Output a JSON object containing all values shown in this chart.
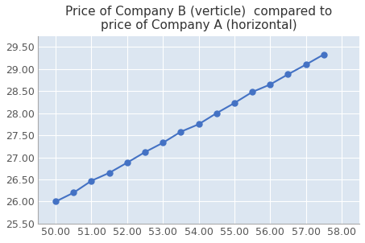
{
  "title": "Price of Company B (verticle)  compared to\nprice of Company A (horizontal)",
  "x": [
    50.0,
    50.5,
    51.0,
    51.5,
    52.0,
    52.5,
    53.0,
    53.5,
    54.0,
    54.5,
    55.0,
    55.5,
    56.0,
    56.5,
    57.0,
    57.5
  ],
  "y": [
    26.0,
    26.2,
    26.47,
    26.65,
    26.88,
    27.12,
    27.33,
    27.58,
    27.75,
    28.0,
    28.23,
    28.48,
    28.65,
    28.88,
    29.1,
    29.33
  ],
  "line_color": "#4472C4",
  "marker": "o",
  "marker_size": 5,
  "xlim": [
    49.5,
    58.5
  ],
  "ylim": [
    25.5,
    29.75
  ],
  "xticks": [
    50.0,
    51.0,
    52.0,
    53.0,
    54.0,
    55.0,
    56.0,
    57.0,
    58.0
  ],
  "yticks": [
    25.5,
    26.0,
    26.5,
    27.0,
    27.5,
    28.0,
    28.5,
    29.0,
    29.5
  ],
  "grid": true,
  "plot_bg_color": "#dce6f1",
  "fig_bg_color": "#ffffff",
  "title_fontsize": 11,
  "tick_fontsize": 9
}
